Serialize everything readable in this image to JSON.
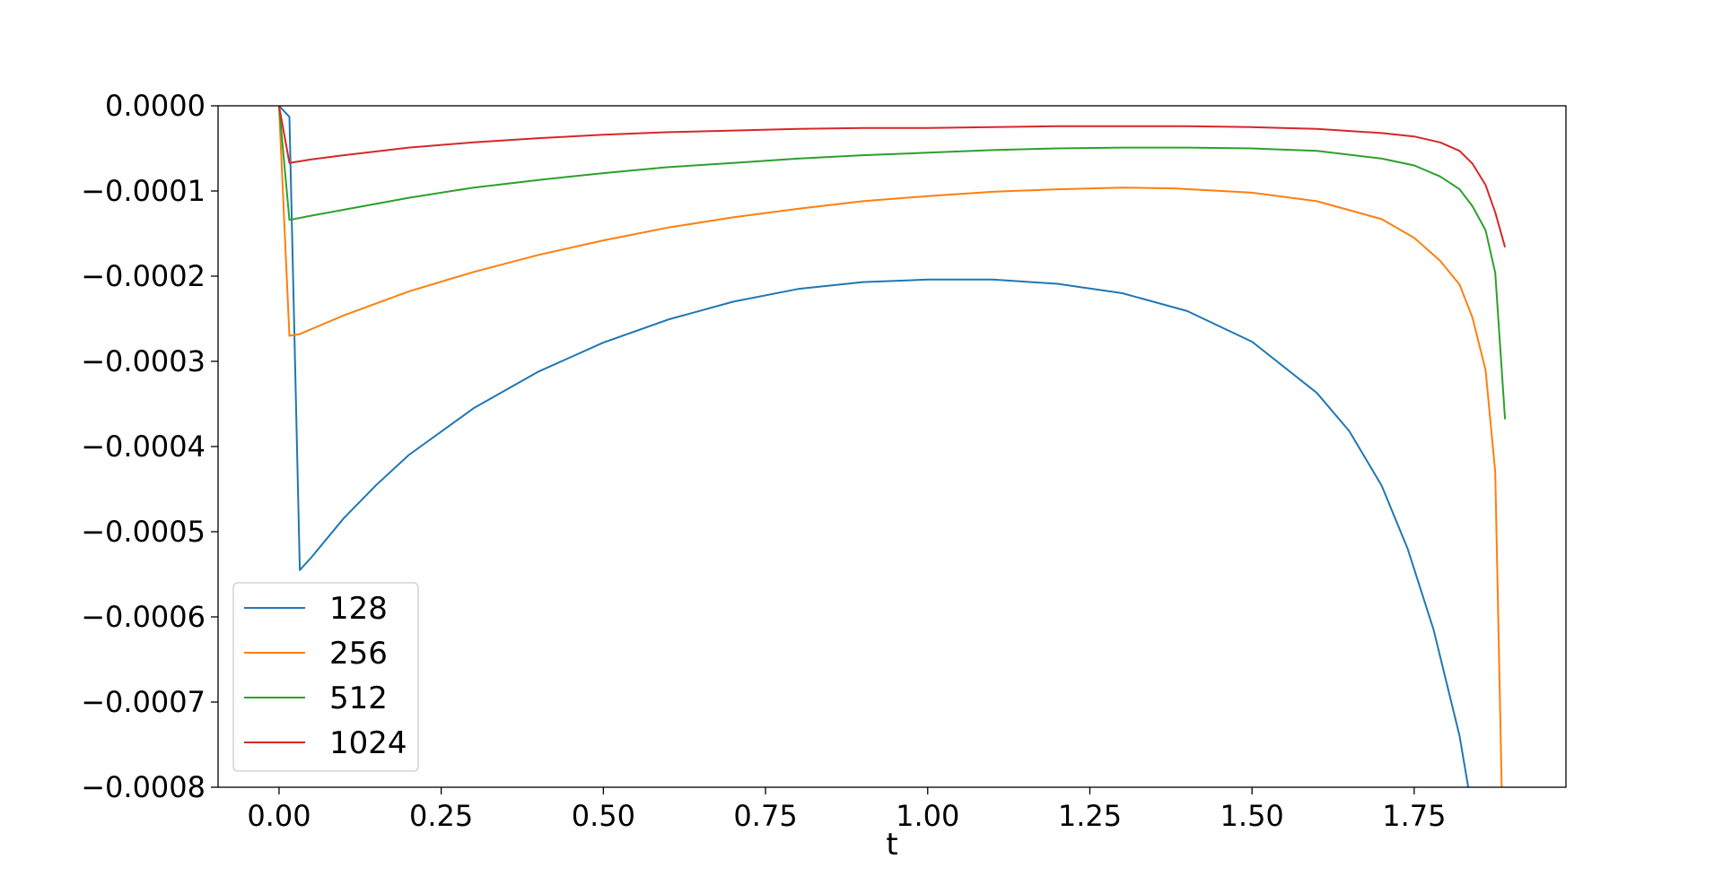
{
  "chart_data": {
    "type": "line",
    "xlabel": "t",
    "ylabel": "",
    "xlim": [
      -0.094,
      1.984
    ],
    "ylim": [
      -0.0008,
      0.0
    ],
    "x_ticks": [
      0.0,
      0.25,
      0.5,
      0.75,
      1.0,
      1.25,
      1.5,
      1.75
    ],
    "x_tick_labels": [
      "0.00",
      "0.25",
      "0.50",
      "0.75",
      "1.00",
      "1.25",
      "1.50",
      "1.75"
    ],
    "y_ticks": [
      0.0,
      -0.0001,
      -0.0002,
      -0.0003,
      -0.0004,
      -0.0005,
      -0.0006,
      -0.0007,
      -0.0008
    ],
    "y_tick_labels": [
      "0.0000",
      "−0.0001",
      "−0.0002",
      "−0.0003",
      "−0.0004",
      "−0.0005",
      "−0.0006",
      "−0.0007",
      "−0.0008"
    ],
    "grid": false,
    "legend_position": "lower-left",
    "series": [
      {
        "name": "128",
        "color": "#1f77b4",
        "points": [
          [
            0.0,
            0.0
          ],
          [
            0.016,
            -1.3e-05
          ],
          [
            0.032,
            -0.000545
          ],
          [
            0.05,
            -0.00053
          ],
          [
            0.1,
            -0.000484
          ],
          [
            0.15,
            -0.000445
          ],
          [
            0.2,
            -0.00041
          ],
          [
            0.3,
            -0.000355
          ],
          [
            0.4,
            -0.000312
          ],
          [
            0.5,
            -0.000278
          ],
          [
            0.6,
            -0.000251
          ],
          [
            0.7,
            -0.00023
          ],
          [
            0.8,
            -0.000215
          ],
          [
            0.9,
            -0.000207
          ],
          [
            1.0,
            -0.000204
          ],
          [
            1.1,
            -0.000204
          ],
          [
            1.2,
            -0.000209
          ],
          [
            1.3,
            -0.00022
          ],
          [
            1.4,
            -0.000241
          ],
          [
            1.5,
            -0.000277
          ],
          [
            1.6,
            -0.000337
          ],
          [
            1.65,
            -0.000382
          ],
          [
            1.7,
            -0.000446
          ],
          [
            1.74,
            -0.00052
          ],
          [
            1.78,
            -0.000615
          ],
          [
            1.82,
            -0.00074
          ],
          [
            1.84,
            -0.00083
          ]
        ]
      },
      {
        "name": "256",
        "color": "#ff7f0e",
        "points": [
          [
            0.0,
            0.0
          ],
          [
            0.016,
            -0.00027
          ],
          [
            0.032,
            -0.000268
          ],
          [
            0.1,
            -0.000246
          ],
          [
            0.2,
            -0.000218
          ],
          [
            0.3,
            -0.000195
          ],
          [
            0.4,
            -0.000175
          ],
          [
            0.5,
            -0.000158
          ],
          [
            0.6,
            -0.000143
          ],
          [
            0.7,
            -0.000131
          ],
          [
            0.8,
            -0.000121
          ],
          [
            0.9,
            -0.000112
          ],
          [
            1.0,
            -0.000106
          ],
          [
            1.1,
            -0.000101
          ],
          [
            1.2,
            -9.8e-05
          ],
          [
            1.3,
            -9.6e-05
          ],
          [
            1.38,
            -9.7e-05
          ],
          [
            1.5,
            -0.000102
          ],
          [
            1.6,
            -0.000112
          ],
          [
            1.7,
            -0.000133
          ],
          [
            1.75,
            -0.000155
          ],
          [
            1.79,
            -0.000182
          ],
          [
            1.82,
            -0.00021
          ],
          [
            1.84,
            -0.000249
          ],
          [
            1.86,
            -0.00031
          ],
          [
            1.875,
            -0.00043
          ],
          [
            1.885,
            -0.0008
          ]
        ]
      },
      {
        "name": "512",
        "color": "#2ca02c",
        "points": [
          [
            0.0,
            0.0
          ],
          [
            0.016,
            -0.000134
          ],
          [
            0.05,
            -0.000129
          ],
          [
            0.1,
            -0.000122
          ],
          [
            0.2,
            -0.000108
          ],
          [
            0.3,
            -9.6e-05
          ],
          [
            0.4,
            -8.7e-05
          ],
          [
            0.5,
            -7.9e-05
          ],
          [
            0.6,
            -7.2e-05
          ],
          [
            0.7,
            -6.7e-05
          ],
          [
            0.8,
            -6.2e-05
          ],
          [
            0.9,
            -5.8e-05
          ],
          [
            1.0,
            -5.5e-05
          ],
          [
            1.1,
            -5.2e-05
          ],
          [
            1.2,
            -5e-05
          ],
          [
            1.3,
            -4.9e-05
          ],
          [
            1.4,
            -4.9e-05
          ],
          [
            1.5,
            -5e-05
          ],
          [
            1.6,
            -5.3e-05
          ],
          [
            1.7,
            -6.2e-05
          ],
          [
            1.75,
            -7e-05
          ],
          [
            1.79,
            -8.3e-05
          ],
          [
            1.82,
            -9.8e-05
          ],
          [
            1.84,
            -0.000118
          ],
          [
            1.86,
            -0.000146
          ],
          [
            1.875,
            -0.000196
          ],
          [
            1.89,
            -0.000368
          ]
        ]
      },
      {
        "name": "1024",
        "color": "#d62728",
        "points": [
          [
            0.0,
            0.0
          ],
          [
            0.016,
            -6.7e-05
          ],
          [
            0.05,
            -6.3e-05
          ],
          [
            0.1,
            -5.8e-05
          ],
          [
            0.2,
            -4.9e-05
          ],
          [
            0.3,
            -4.3e-05
          ],
          [
            0.4,
            -3.8e-05
          ],
          [
            0.5,
            -3.4e-05
          ],
          [
            0.6,
            -3.1e-05
          ],
          [
            0.7,
            -2.9e-05
          ],
          [
            0.8,
            -2.7e-05
          ],
          [
            0.9,
            -2.6e-05
          ],
          [
            1.0,
            -2.6e-05
          ],
          [
            1.1,
            -2.5e-05
          ],
          [
            1.2,
            -2.4e-05
          ],
          [
            1.3,
            -2.4e-05
          ],
          [
            1.4,
            -2.4e-05
          ],
          [
            1.5,
            -2.5e-05
          ],
          [
            1.6,
            -2.7e-05
          ],
          [
            1.7,
            -3.2e-05
          ],
          [
            1.75,
            -3.6e-05
          ],
          [
            1.79,
            -4.3e-05
          ],
          [
            1.82,
            -5.3e-05
          ],
          [
            1.84,
            -6.8e-05
          ],
          [
            1.86,
            -9.3e-05
          ],
          [
            1.875,
            -0.000125
          ],
          [
            1.89,
            -0.000166
          ]
        ]
      }
    ]
  }
}
